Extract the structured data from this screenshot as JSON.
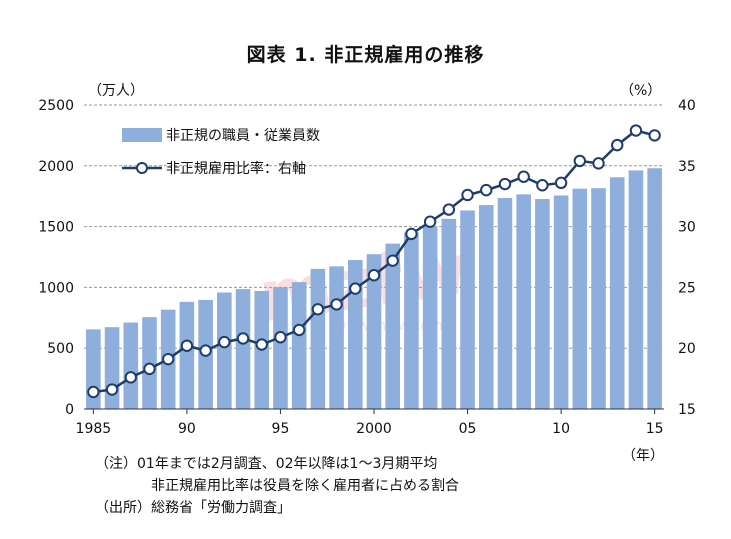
{
  "chart_data": {
    "type": "bar+line",
    "title": "図表 1.  非正規雇用の推移",
    "left_unit": "（万人）",
    "right_unit": "（%）",
    "x_unit": "（年）",
    "years": [
      1985,
      1986,
      1987,
      1988,
      1989,
      1990,
      1991,
      1992,
      1993,
      1994,
      1995,
      1996,
      1997,
      1998,
      1999,
      2000,
      2001,
      2002,
      2003,
      2004,
      2005,
      2006,
      2007,
      2008,
      2009,
      2010,
      2011,
      2012,
      2013,
      2014,
      2015
    ],
    "x_tick_labels": [
      {
        "year": 1985,
        "label": "1985"
      },
      {
        "year": 1990,
        "label": "90"
      },
      {
        "year": 1995,
        "label": "95"
      },
      {
        "year": 2000,
        "label": "2000"
      },
      {
        "year": 2005,
        "label": "05"
      },
      {
        "year": 2010,
        "label": "10"
      },
      {
        "year": 2015,
        "label": "15"
      }
    ],
    "left_axis": {
      "min": 0,
      "max": 2500,
      "ticks": [
        0,
        500,
        1000,
        1500,
        2000,
        2500
      ]
    },
    "right_axis": {
      "min": 15,
      "max": 40,
      "ticks": [
        15,
        20,
        25,
        30,
        35,
        40
      ]
    },
    "series": [
      {
        "name": "非正規の職員・従業員数",
        "kind": "bar",
        "axis": "left",
        "color": "#8eaedb",
        "values": [
          655,
          673,
          711,
          755,
          817,
          881,
          897,
          958,
          986,
          971,
          1001,
          1043,
          1152,
          1173,
          1225,
          1273,
          1360,
          1451,
          1504,
          1564,
          1633,
          1677,
          1735,
          1765,
          1727,
          1756,
          1812,
          1816,
          1906,
          1962,
          1980
        ]
      },
      {
        "name": "非正規雇用比率：右軸",
        "kind": "line",
        "axis": "right",
        "color": "#1f3d6b",
        "values": [
          16.4,
          16.6,
          17.6,
          18.3,
          19.1,
          20.2,
          19.8,
          20.5,
          20.8,
          20.3,
          20.9,
          21.5,
          23.2,
          23.6,
          24.9,
          26.0,
          27.2,
          29.4,
          30.4,
          31.4,
          32.6,
          33.0,
          33.5,
          34.1,
          33.4,
          33.6,
          35.4,
          35.2,
          36.7,
          37.9,
          37.5
        ]
      }
    ],
    "legend_position": "top-left",
    "grid": "dashed horizontal"
  },
  "notes": [
    "（注）01年までは2月調査、02年以降は1～3月期平均",
    "非正規雇用比率は役員を除く雇用者に占める割合",
    "（出所）総務省「労働力調査」"
  ],
  "watermark": "mzfw www.mzfw.com"
}
